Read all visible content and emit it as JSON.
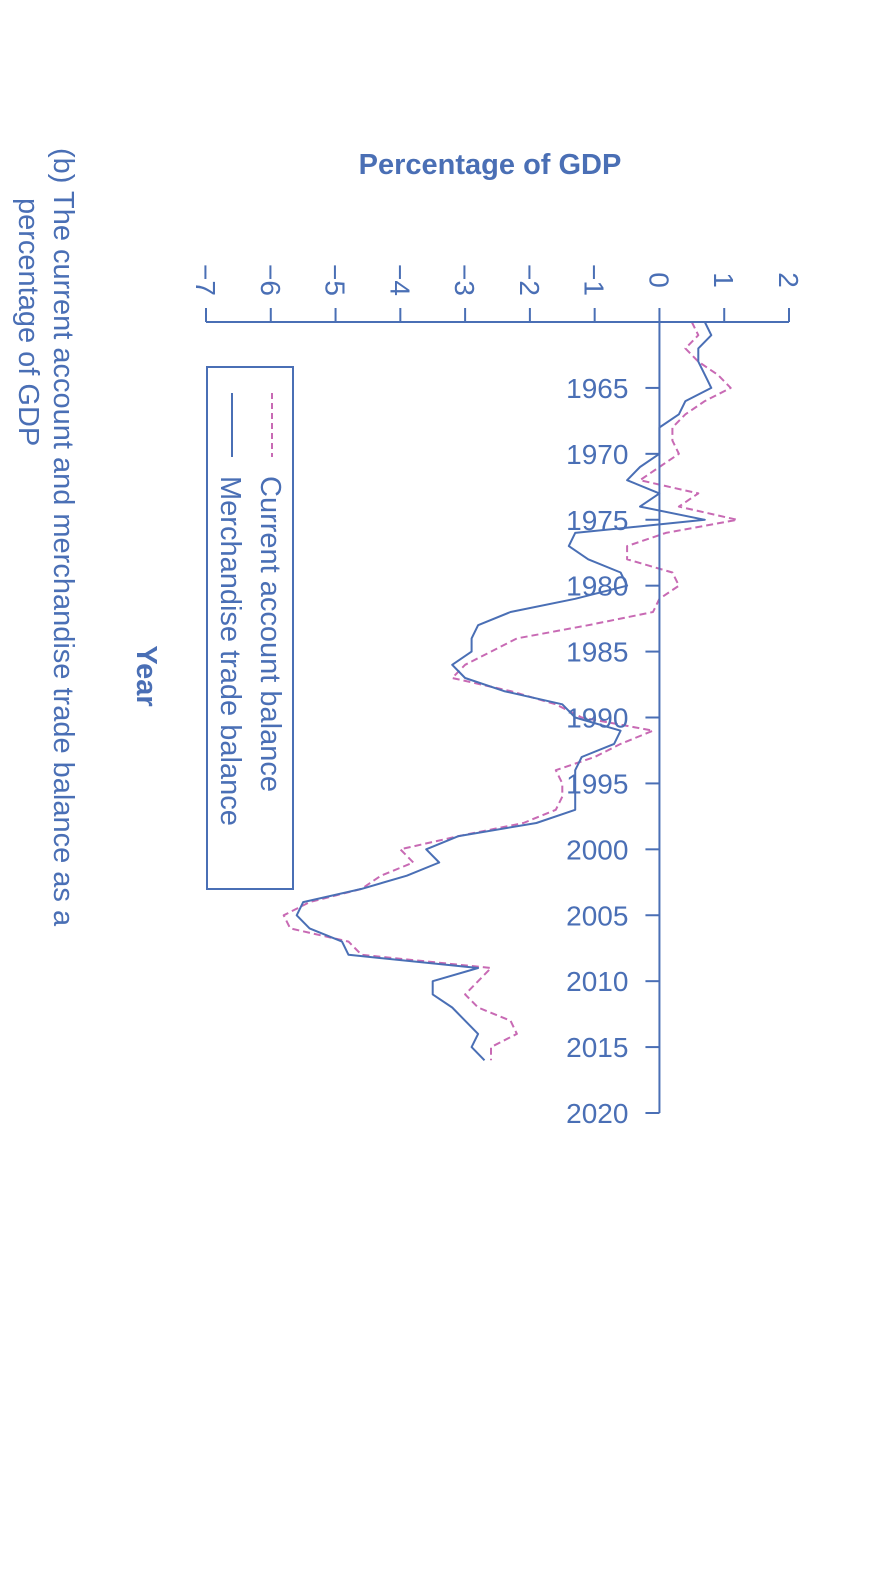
{
  "chart_data": {
    "type": "line",
    "orientation": "rotated 90 degrees clockwise",
    "title": "",
    "ylabel": "Percentage of GDP",
    "xlabel": "Year",
    "caption_line1": "(b) The current account and merchandise trade balance as a",
    "caption_line2": "percentage of GDP",
    "xlim": [
      1960,
      2020
    ],
    "ylim": [
      -7,
      2
    ],
    "x_ticks": [
      "1965",
      "1970",
      "1975",
      "1980",
      "1985",
      "1990",
      "1995",
      "2000",
      "2005",
      "2010",
      "2015",
      "2020"
    ],
    "y_ticks": [
      "−7",
      "−6",
      "−5",
      "−4",
      "−3",
      "−2",
      "−1",
      "0",
      "1",
      "2"
    ],
    "legend": {
      "placement": "lower-left (rotated)",
      "current_label": "Current  account balance",
      "merchandise_label": "Merchandise trade balance"
    },
    "colors": {
      "axis": "#4a6fb5",
      "merchandise": "#4a6fb5",
      "current": "#c86ab4"
    },
    "series": [
      {
        "name": "Current  account balance",
        "style": "dashed",
        "x": [
          1960,
          1961,
          1962,
          1963,
          1964,
          1965,
          1966,
          1967,
          1968,
          1969,
          1970,
          1971,
          1972,
          1973,
          1974,
          1975,
          1976,
          1977,
          1978,
          1979,
          1980,
          1981,
          1982,
          1983,
          1984,
          1985,
          1986,
          1987,
          1988,
          1989,
          1990,
          1991,
          1992,
          1993,
          1994,
          1995,
          1996,
          1997,
          1998,
          1999,
          2000,
          2001,
          2002,
          2003,
          2004,
          2005,
          2006,
          2007,
          2008,
          2009,
          2010,
          2011,
          2012,
          2013,
          2014,
          2015,
          2016
        ],
        "values": [
          0.5,
          0.6,
          0.4,
          0.6,
          0.9,
          1.1,
          0.7,
          0.4,
          0.2,
          0.2,
          0.3,
          0.0,
          -0.3,
          0.6,
          0.3,
          1.2,
          0.1,
          -0.5,
          -0.5,
          0.2,
          0.3,
          0.0,
          -0.1,
          -1.1,
          -2.2,
          -2.6,
          -3.0,
          -3.2,
          -2.3,
          -1.6,
          -1.2,
          -0.1,
          -0.6,
          -1.0,
          -1.6,
          -1.5,
          -1.5,
          -1.6,
          -2.1,
          -3.1,
          -4.0,
          -3.8,
          -4.3,
          -4.6,
          -5.4,
          -5.8,
          -5.7,
          -4.8,
          -4.6,
          -2.6,
          -2.8,
          -3.0,
          -2.8,
          -2.3,
          -2.2,
          -2.6,
          -2.6
        ]
      },
      {
        "name": "Merchandise trade balance",
        "style": "solid",
        "x": [
          1960,
          1961,
          1962,
          1963,
          1964,
          1965,
          1966,
          1967,
          1968,
          1969,
          1970,
          1971,
          1972,
          1973,
          1974,
          1975,
          1976,
          1977,
          1978,
          1979,
          1980,
          1981,
          1982,
          1983,
          1984,
          1985,
          1986,
          1987,
          1988,
          1989,
          1990,
          1991,
          1992,
          1993,
          1994,
          1995,
          1996,
          1997,
          1998,
          1999,
          2000,
          2001,
          2002,
          2003,
          2004,
          2005,
          2006,
          2007,
          2008,
          2009,
          2010,
          2011,
          2012,
          2013,
          2014,
          2015,
          2016
        ],
        "values": [
          0.7,
          0.8,
          0.6,
          0.6,
          0.7,
          0.8,
          0.4,
          0.3,
          0.0,
          0.0,
          0.0,
          -0.3,
          -0.5,
          0.0,
          -0.3,
          0.7,
          -1.3,
          -1.4,
          -1.1,
          -0.6,
          -0.5,
          -1.3,
          -2.3,
          -2.8,
          -2.9,
          -2.9,
          -3.2,
          -3.0,
          -2.4,
          -1.5,
          -1.3,
          -0.6,
          -0.7,
          -1.2,
          -1.3,
          -1.3,
          -1.3,
          -1.3,
          -1.9,
          -3.1,
          -3.6,
          -3.4,
          -3.9,
          -4.6,
          -5.5,
          -5.6,
          -5.4,
          -4.9,
          -4.8,
          -2.8,
          -3.5,
          -3.5,
          -3.2,
          -3.0,
          -2.8,
          -2.9,
          -2.7
        ]
      }
    ]
  }
}
